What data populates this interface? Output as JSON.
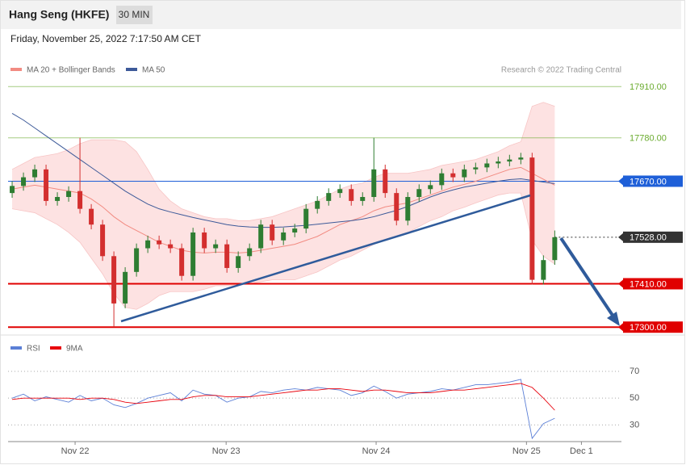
{
  "header": {
    "title": "Hang Seng (HKFE)",
    "interval": "30 MIN",
    "date": "Friday, November 25, 2022 7:17:50 AM CET",
    "credit": "Research © 2022 Trading Central"
  },
  "chart_data": [
    {
      "type": "candlestick",
      "up_color": "#2e7d32",
      "down_color": "#d32f2f",
      "open": [
        17640,
        17658,
        17680,
        17700,
        17620,
        17630,
        17645,
        17600,
        17560,
        17480,
        17360,
        17440,
        17500,
        17520,
        17510,
        17500,
        17430,
        17540,
        17500,
        17510,
        17450,
        17480,
        17500,
        17560,
        17520,
        17540,
        17550,
        17600,
        17620,
        17640,
        17650,
        17620,
        17630,
        17700,
        17640,
        17570,
        17630,
        17650,
        17660,
        17690,
        17680,
        17700,
        17705,
        17715,
        17720,
        17725,
        17730,
        17420,
        17470
      ],
      "high": [
        17670,
        17692,
        17712,
        17712,
        17642,
        17657,
        17780,
        17612,
        17572,
        17492,
        17452,
        17512,
        17532,
        17532,
        17522,
        17512,
        17552,
        17552,
        17522,
        17522,
        17492,
        17512,
        17572,
        17572,
        17552,
        17562,
        17612,
        17632,
        17652,
        17662,
        17662,
        17642,
        17780,
        17712,
        17652,
        17642,
        17662,
        17672,
        17702,
        17702,
        17712,
        17717,
        17727,
        17732,
        17737,
        17742,
        17742,
        17482,
        17545
      ],
      "low": [
        17628,
        17646,
        17668,
        17608,
        17608,
        17618,
        17588,
        17548,
        17468,
        17300,
        17348,
        17428,
        17488,
        17498,
        17488,
        17418,
        17418,
        17488,
        17488,
        17438,
        17438,
        17468,
        17488,
        17508,
        17508,
        17528,
        17538,
        17588,
        17608,
        17628,
        17608,
        17608,
        17618,
        17628,
        17558,
        17558,
        17618,
        17638,
        17648,
        17668,
        17668,
        17688,
        17693,
        17703,
        17708,
        17713,
        17408,
        17408,
        17458
      ],
      "close": [
        17658,
        17680,
        17700,
        17620,
        17630,
        17645,
        17600,
        17560,
        17480,
        17360,
        17440,
        17500,
        17520,
        17510,
        17500,
        17430,
        17540,
        17500,
        17510,
        17450,
        17480,
        17500,
        17560,
        17520,
        17540,
        17550,
        17600,
        17620,
        17640,
        17650,
        17620,
        17630,
        17700,
        17640,
        17570,
        17630,
        17650,
        17660,
        17690,
        17680,
        17700,
        17705,
        17715,
        17720,
        17725,
        17730,
        17420,
        17470,
        17528
      ],
      "series": [
        {
          "name": "MA 20 + Bollinger Bands",
          "color": "#f28b82",
          "band_color": "#fde2e2",
          "values": [
            17650,
            17655,
            17660,
            17655,
            17650,
            17645,
            17640,
            17625,
            17605,
            17580,
            17560,
            17545,
            17530,
            17515,
            17505,
            17495,
            17490,
            17488,
            17490,
            17490,
            17488,
            17490,
            17495,
            17500,
            17505,
            17510,
            17520,
            17530,
            17545,
            17560,
            17570,
            17580,
            17595,
            17605,
            17610,
            17615,
            17625,
            17635,
            17645,
            17655,
            17662,
            17670,
            17680,
            17690,
            17700,
            17705,
            17690,
            17675,
            17660
          ],
          "upper": [
            17700,
            17715,
            17730,
            17735,
            17740,
            17750,
            17765,
            17775,
            17775,
            17775,
            17770,
            17745,
            17700,
            17650,
            17620,
            17600,
            17590,
            17580,
            17575,
            17575,
            17570,
            17570,
            17575,
            17580,
            17590,
            17600,
            17610,
            17620,
            17635,
            17650,
            17660,
            17665,
            17680,
            17690,
            17690,
            17690,
            17695,
            17700,
            17710,
            17715,
            17720,
            17725,
            17735,
            17745,
            17760,
            17770,
            17860,
            17870,
            17860
          ],
          "lower": [
            17600,
            17595,
            17590,
            17575,
            17560,
            17540,
            17515,
            17475,
            17435,
            17385,
            17350,
            17345,
            17360,
            17380,
            17390,
            17390,
            17390,
            17396,
            17405,
            17405,
            17406,
            17410,
            17415,
            17420,
            17420,
            17420,
            17430,
            17440,
            17455,
            17470,
            17480,
            17495,
            17510,
            17520,
            17530,
            17540,
            17555,
            17570,
            17580,
            17595,
            17604,
            17615,
            17625,
            17635,
            17640,
            17640,
            17520,
            17480,
            17460
          ]
        },
        {
          "name": "MA 50",
          "color": "#3d5a99",
          "values": [
            17842,
            17825,
            17805,
            17785,
            17765,
            17745,
            17725,
            17705,
            17685,
            17665,
            17645,
            17628,
            17612,
            17600,
            17592,
            17585,
            17578,
            17572,
            17566,
            17560,
            17556,
            17554,
            17553,
            17553,
            17554,
            17556,
            17558,
            17561,
            17564,
            17567,
            17570,
            17574,
            17580,
            17588,
            17596,
            17606,
            17618,
            17630,
            17640,
            17648,
            17655,
            17660,
            17665,
            17670,
            17674,
            17676,
            17672,
            17668,
            17664
          ]
        }
      ],
      "levels": [
        {
          "value": 17910,
          "label": "17910.00",
          "color": "#6aab2e",
          "box": false,
          "dash": false
        },
        {
          "value": 17780,
          "label": "17780.00",
          "color": "#6aab2e",
          "box": false,
          "dash": false
        },
        {
          "value": 17670,
          "label": "17670.00",
          "color": "#1e5fd8",
          "box": true,
          "dash": false
        },
        {
          "value": 17528,
          "label": "17528.00",
          "color": "#333333",
          "box": true,
          "dash": true
        },
        {
          "value": 17410,
          "label": "17410.00",
          "color": "#e00000",
          "box": true,
          "dash": false
        },
        {
          "value": 17300,
          "label": "17300.00",
          "color": "#e00000",
          "box": true,
          "dash": false
        }
      ],
      "ylim": [
        17280,
        17935
      ],
      "xlim": [
        -0.36,
        53.9
      ]
    },
    {
      "type": "line",
      "series": [
        {
          "name": "RSI",
          "color": "#5b7fd6",
          "values": [
            50,
            53,
            48,
            51,
            49,
            47,
            52,
            48,
            50,
            45,
            43,
            46,
            50,
            52,
            54,
            48,
            56,
            53,
            52,
            47,
            50,
            51,
            55,
            54,
            56,
            57,
            56,
            58,
            57,
            56,
            52,
            54,
            59,
            55,
            50,
            53,
            54,
            55,
            57,
            56,
            58,
            60,
            60,
            61,
            62,
            64,
            20,
            31,
            35
          ]
        },
        {
          "name": "9MA",
          "color": "#e8000b",
          "values": [
            49,
            50,
            50,
            50,
            50,
            50,
            49,
            50,
            50,
            49,
            47,
            46,
            47,
            48,
            49,
            49,
            51,
            52,
            52,
            51,
            51,
            51,
            52,
            53,
            54,
            55,
            56,
            56,
            57,
            57,
            56,
            55,
            56,
            56,
            55,
            54,
            54,
            54,
            55,
            56,
            56,
            57,
            58,
            59,
            60,
            61,
            58,
            50,
            41
          ]
        }
      ],
      "ylim": [
        17,
        79
      ],
      "yticks": [
        70,
        50,
        30
      ],
      "xlim": [
        -0.36,
        53.9
      ],
      "xticks": [
        {
          "value": 5.57,
          "label": "Nov 22"
        },
        {
          "value": 18.93,
          "label": "Nov 23"
        },
        {
          "value": 32.2,
          "label": "Nov 24"
        },
        {
          "value": 45.5,
          "label": "Nov 25"
        },
        {
          "value": 50.36,
          "label": "Dec 1"
        }
      ]
    }
  ]
}
